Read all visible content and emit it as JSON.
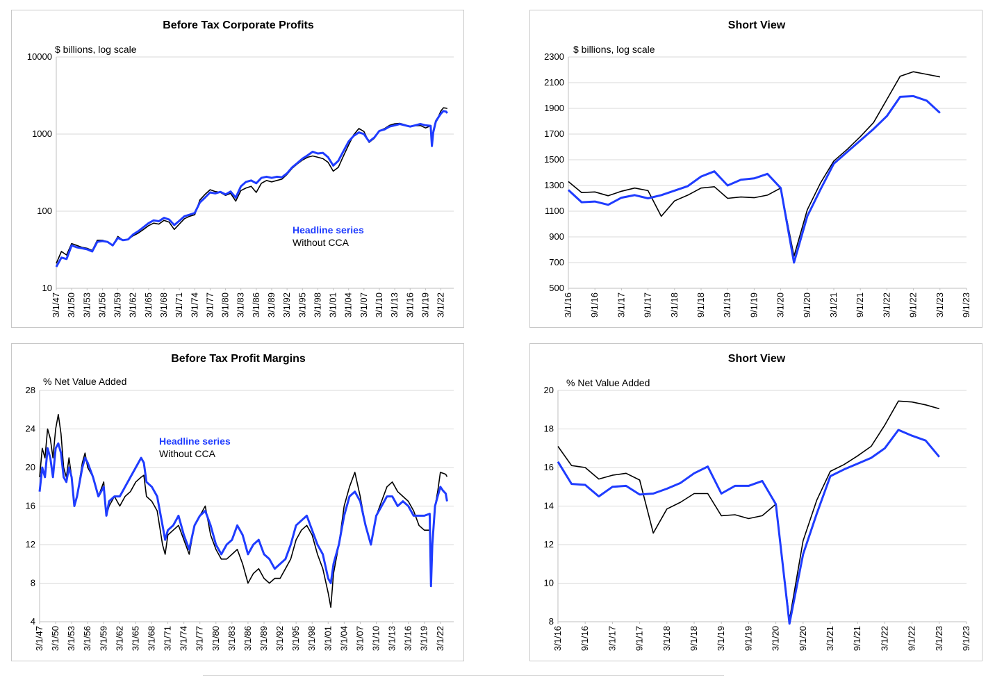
{
  "colors": {
    "headline": "#1f3cff",
    "without_cca": "#000000",
    "grid": "#d9d9d9",
    "axis": "#bfbfbf"
  },
  "chart_data": [
    {
      "type": "line",
      "title": "Before Tax Corporate Profits",
      "ylabel": "$ billions, log scale",
      "y_scale": "log",
      "ylim": [
        10,
        10000
      ],
      "y_ticks": [
        "10",
        "100",
        "1000",
        "10000"
      ],
      "x_tick_labels": [
        "3/1/47",
        "3/1/50",
        "3/1/53",
        "3/1/56",
        "3/1/59",
        "3/1/62",
        "3/1/65",
        "3/1/68",
        "3/1/71",
        "3/1/74",
        "3/1/77",
        "3/1/80",
        "3/1/83",
        "3/1/86",
        "3/1/89",
        "3/1/92",
        "3/1/95",
        "3/1/98",
        "3/1/01",
        "3/1/04",
        "3/1/07",
        "3/1/10",
        "3/1/13",
        "3/1/16",
        "3/1/19",
        "3/1/22"
      ],
      "xlim": [
        1947.0,
        2024.5
      ],
      "legend": {
        "placement": "center",
        "entries": [
          "Headline series",
          "Without CCA"
        ]
      },
      "series": [
        {
          "name": "Headline series",
          "x": [
            1947.0,
            1948,
            1949,
            1950,
            1951,
            1952,
            1953,
            1954,
            1955,
            1956,
            1957,
            1958,
            1959,
            1960,
            1961,
            1962,
            1963,
            1964,
            1965,
            1966,
            1967,
            1968,
            1969,
            1970,
            1971,
            1972,
            1973,
            1974,
            1975,
            1976,
            1977,
            1978,
            1979,
            1980,
            1981,
            1982,
            1983,
            1984,
            1985,
            1986,
            1987,
            1988,
            1989,
            1990,
            1991,
            1992,
            1993,
            1994,
            1995,
            1996,
            1997,
            1998,
            1999,
            2000,
            2001,
            2002,
            2003,
            2004,
            2005,
            2006,
            2007,
            2008,
            2009,
            2010,
            2011,
            2012,
            2013,
            2014,
            2015,
            2016,
            2017,
            2018,
            2019,
            2020.0,
            2020.25,
            2020.5,
            2021,
            2021.5,
            2022,
            2022.5,
            2023,
            2023.25
          ],
          "y": [
            19,
            25,
            24,
            36,
            34,
            33,
            32,
            30,
            40,
            41,
            40,
            36,
            45,
            42,
            43,
            50,
            55,
            62,
            70,
            76,
            74,
            82,
            78,
            66,
            75,
            86,
            90,
            95,
            130,
            150,
            175,
            170,
            178,
            165,
            180,
            150,
            210,
            240,
            250,
            230,
            270,
            280,
            270,
            280,
            275,
            310,
            370,
            420,
            480,
            530,
            590,
            560,
            570,
            500,
            390,
            450,
            600,
            800,
            950,
            1050,
            1000,
            800,
            900,
            1100,
            1150,
            1250,
            1300,
            1350,
            1300,
            1250,
            1300,
            1350,
            1300,
            1280,
            700,
            1050,
            1450,
            1650,
            1840,
            1990,
            1960,
            1870
          ]
        },
        {
          "name": "Without CCA",
          "x": [
            1947.0,
            1948,
            1949,
            1950,
            1951,
            1952,
            1953,
            1954,
            1955,
            1956,
            1957,
            1958,
            1959,
            1960,
            1961,
            1962,
            1963,
            1964,
            1965,
            1966,
            1967,
            1968,
            1969,
            1970,
            1971,
            1972,
            1973,
            1974,
            1975,
            1976,
            1977,
            1978,
            1979,
            1980,
            1981,
            1982,
            1983,
            1984,
            1985,
            1986,
            1987,
            1988,
            1989,
            1990,
            1991,
            1992,
            1993,
            1994,
            1995,
            1996,
            1997,
            1998,
            1999,
            2000,
            2001,
            2002,
            2003,
            2004,
            2005,
            2006,
            2007,
            2008,
            2009,
            2010,
            2011,
            2012,
            2013,
            2014,
            2015,
            2016,
            2017,
            2018,
            2019,
            2020.0,
            2020.25,
            2020.5,
            2021,
            2021.5,
            2022,
            2022.5,
            2023,
            2023.25
          ],
          "y": [
            21,
            30,
            27,
            38,
            36,
            34,
            33,
            31,
            42,
            42,
            40,
            36,
            47,
            42,
            43,
            48,
            52,
            58,
            65,
            70,
            68,
            76,
            72,
            58,
            68,
            80,
            86,
            90,
            140,
            165,
            190,
            180,
            175,
            160,
            170,
            135,
            185,
            200,
            210,
            175,
            230,
            250,
            240,
            250,
            260,
            300,
            360,
            410,
            460,
            500,
            520,
            500,
            480,
            430,
            330,
            370,
            520,
            720,
            980,
            1180,
            1080,
            780,
            880,
            1100,
            1180,
            1300,
            1360,
            1380,
            1320,
            1250,
            1280,
            1290,
            1200,
            1280,
            750,
            1120,
            1500,
            1680,
            1990,
            2190,
            2170,
            2150
          ]
        }
      ]
    },
    {
      "type": "line",
      "title": "Short View",
      "ylabel": "$ billions, log scale",
      "ylim": [
        500,
        2300
      ],
      "y_ticks": [
        "500",
        "700",
        "900",
        "1100",
        "1300",
        "1500",
        "1700",
        "1900",
        "2100",
        "2300"
      ],
      "x_tick_labels": [
        "3/1/16",
        "9/1/16",
        "3/1/17",
        "9/1/17",
        "3/1/18",
        "9/1/18",
        "3/1/19",
        "9/1/19",
        "3/1/20",
        "9/1/20",
        "3/1/21",
        "9/1/21",
        "3/1/22",
        "9/1/22",
        "3/1/23",
        "9/1/23"
      ],
      "x_dates": [
        "3/1/16",
        "6/1/16",
        "9/1/16",
        "12/1/16",
        "3/1/17",
        "6/1/17",
        "9/1/17",
        "12/1/17",
        "3/1/18",
        "6/1/18",
        "9/1/18",
        "12/1/18",
        "3/1/19",
        "6/1/19",
        "9/1/19",
        "12/1/19",
        "3/1/20",
        "6/1/20",
        "9/1/20",
        "12/1/20",
        "3/1/21",
        "6/1/21",
        "9/1/21",
        "12/1/21",
        "3/1/22",
        "6/1/22",
        "9/1/22",
        "12/1/22",
        "3/1/23"
      ],
      "series": [
        {
          "name": "Headline series",
          "y": [
            1265,
            1170,
            1175,
            1150,
            1205,
            1225,
            1200,
            1225,
            1260,
            1295,
            1370,
            1410,
            1300,
            1345,
            1355,
            1390,
            1280,
            700,
            1060,
            1270,
            1470,
            1560,
            1650,
            1740,
            1840,
            1990,
            1995,
            1960,
            1865
          ]
        },
        {
          "name": "Without CCA",
          "y": [
            1330,
            1245,
            1250,
            1220,
            1255,
            1280,
            1260,
            1060,
            1180,
            1225,
            1280,
            1290,
            1200,
            1210,
            1205,
            1225,
            1280,
            750,
            1110,
            1320,
            1490,
            1580,
            1680,
            1790,
            1970,
            2150,
            2185,
            2165,
            2145
          ]
        }
      ]
    },
    {
      "type": "line",
      "title": "Before Tax Profit Margins",
      "ylabel": "% Net Value Added",
      "ylim": [
        4,
        28
      ],
      "y_ticks": [
        "4",
        "8",
        "12",
        "16",
        "20",
        "24",
        "28"
      ],
      "x_tick_labels": [
        "3/1/47",
        "3/1/50",
        "3/1/53",
        "3/1/56",
        "3/1/59",
        "3/1/62",
        "3/1/65",
        "3/1/68",
        "3/1/71",
        "3/1/74",
        "3/1/77",
        "3/1/80",
        "3/1/83",
        "3/1/86",
        "3/1/89",
        "3/1/92",
        "3/1/95",
        "3/1/98",
        "3/1/01",
        "3/1/04",
        "3/1/07",
        "3/1/10",
        "3/1/13",
        "3/1/16",
        "3/1/19",
        "3/1/22"
      ],
      "xlim": [
        1947.0,
        2024.5
      ],
      "legend": {
        "placement": "upper center",
        "entries": [
          "Headline series",
          "Without CCA"
        ]
      },
      "series": [
        {
          "name": "Headline series",
          "x": [
            1947.0,
            1947.5,
            1948,
            1948.5,
            1949,
            1949.5,
            1950,
            1950.5,
            1951,
            1951.5,
            1952,
            1952.5,
            1953,
            1953.5,
            1954,
            1955,
            1955.5,
            1956,
            1957,
            1958,
            1959,
            1959.5,
            1960,
            1961,
            1962,
            1963,
            1964,
            1965,
            1966,
            1966.5,
            1967,
            1968,
            1969,
            1970,
            1970.5,
            1971,
            1972,
            1973,
            1974,
            1975,
            1976,
            1977,
            1978,
            1979,
            1980,
            1981,
            1982,
            1983,
            1984,
            1985,
            1986,
            1987,
            1988,
            1989,
            1990,
            1991,
            1992,
            1993,
            1994,
            1995,
            1996,
            1997,
            1998,
            1999,
            2000,
            2001,
            2001.5,
            2002,
            2003,
            2004,
            2005,
            2006,
            2007,
            2008,
            2009,
            2010,
            2011,
            2012,
            2013,
            2014,
            2015,
            2016,
            2017,
            2018,
            2019,
            2020.0,
            2020.25,
            2020.5,
            2021,
            2021.5,
            2022,
            2022.5,
            2023,
            2023.25
          ],
          "y": [
            17.5,
            20,
            19,
            22,
            21,
            19,
            22,
            22.5,
            21.5,
            19,
            18.5,
            20,
            19,
            16,
            17,
            20,
            21,
            20.5,
            19,
            17,
            18,
            15,
            16.5,
            17,
            17,
            18,
            19,
            20,
            21,
            20.5,
            18.5,
            18,
            17,
            14,
            12.5,
            13.5,
            14,
            15,
            13,
            11.5,
            14,
            15,
            15.5,
            14,
            12,
            11,
            12,
            12.5,
            14,
            13,
            11,
            12,
            12.5,
            11,
            10.5,
            9.5,
            10,
            10.5,
            12,
            14,
            14.5,
            15,
            13.5,
            12,
            11,
            8.5,
            8,
            10,
            12,
            15,
            17,
            17.5,
            16.5,
            14,
            12,
            15,
            16,
            17,
            17,
            16,
            16.5,
            16,
            15,
            15,
            15,
            15.2,
            7.7,
            12,
            16,
            17,
            18,
            17.6,
            17.3,
            16.5
          ]
        },
        {
          "name": "Without CCA",
          "x": [
            1947.0,
            1947.5,
            1948,
            1948.5,
            1949,
            1949.5,
            1950,
            1950.5,
            1951,
            1951.5,
            1952,
            1952.5,
            1953,
            1953.5,
            1954,
            1955,
            1955.5,
            1956,
            1957,
            1958,
            1959,
            1959.5,
            1960,
            1961,
            1962,
            1963,
            1964,
            1965,
            1966,
            1966.5,
            1967,
            1968,
            1969,
            1970,
            1970.5,
            1971,
            1972,
            1973,
            1974,
            1975,
            1976,
            1977,
            1978,
            1979,
            1980,
            1981,
            1982,
            1983,
            1984,
            1985,
            1986,
            1987,
            1988,
            1989,
            1990,
            1991,
            1992,
            1993,
            1994,
            1995,
            1996,
            1997,
            1998,
            1999,
            2000,
            2001,
            2001.5,
            2002,
            2003,
            2004,
            2005,
            2006,
            2007,
            2008,
            2009,
            2010,
            2011,
            2012,
            2013,
            2014,
            2015,
            2016,
            2017,
            2018,
            2019,
            2020.0,
            2020.25,
            2020.5,
            2021,
            2021.5,
            2022,
            2022.5,
            2023,
            2023.25
          ],
          "y": [
            19,
            22,
            21,
            24,
            23,
            21,
            24,
            25.5,
            23.5,
            20,
            19,
            21,
            19,
            16,
            17,
            20.5,
            21.5,
            20,
            19,
            17,
            18.5,
            15,
            16,
            17,
            16,
            17,
            17.5,
            18.5,
            19,
            19.2,
            17,
            16.5,
            15.5,
            12,
            11,
            13,
            13.5,
            14,
            12.5,
            11,
            14,
            15,
            16,
            13,
            11.5,
            10.5,
            10.5,
            11,
            11.5,
            10,
            8,
            9,
            9.5,
            8.5,
            8,
            8.5,
            8.5,
            9.5,
            10.5,
            12.5,
            13.5,
            14,
            13,
            11,
            9.5,
            7,
            5.5,
            9,
            12,
            16,
            18,
            19.5,
            17,
            14,
            12,
            15,
            16.5,
            18,
            18.5,
            17.5,
            17,
            16.5,
            15.5,
            14,
            13.5,
            13.5,
            7.7,
            12.2,
            16,
            17.5,
            19.5,
            19.4,
            19.3,
            19.05
          ]
        }
      ]
    },
    {
      "type": "line",
      "title": "Short View",
      "ylabel": "% Net Value Added",
      "ylim": [
        8,
        20
      ],
      "y_ticks": [
        "8",
        "10",
        "12",
        "14",
        "16",
        "18",
        "20"
      ],
      "x_tick_labels": [
        "3/1/16",
        "9/1/16",
        "3/1/17",
        "9/1/17",
        "3/1/18",
        "9/1/18",
        "3/1/19",
        "9/1/19",
        "3/1/20",
        "9/1/20",
        "3/1/21",
        "9/1/21",
        "3/1/22",
        "9/1/22",
        "3/1/23",
        "9/1/23"
      ],
      "x_dates": [
        "3/1/16",
        "6/1/16",
        "9/1/16",
        "12/1/16",
        "3/1/17",
        "6/1/17",
        "9/1/17",
        "12/1/17",
        "3/1/18",
        "6/1/18",
        "9/1/18",
        "12/1/18",
        "3/1/19",
        "6/1/19",
        "9/1/19",
        "12/1/19",
        "3/1/20",
        "6/1/20",
        "9/1/20",
        "12/1/20",
        "3/1/21",
        "6/1/21",
        "9/1/21",
        "12/1/21",
        "3/1/22",
        "6/1/22",
        "9/1/22",
        "12/1/22",
        "3/1/23"
      ],
      "series": [
        {
          "name": "Headline series",
          "y": [
            16.3,
            15.15,
            15.1,
            14.5,
            15,
            15.05,
            14.6,
            14.65,
            14.9,
            15.2,
            15.7,
            16.05,
            14.65,
            15.05,
            15.05,
            15.3,
            14.1,
            7.9,
            11.5,
            13.6,
            15.55,
            15.9,
            16.2,
            16.5,
            17,
            17.95,
            17.65,
            17.4,
            16.55
          ]
        },
        {
          "name": "Without CCA",
          "y": [
            17.1,
            16.1,
            16,
            15.4,
            15.6,
            15.7,
            15.35,
            12.6,
            13.85,
            14.2,
            14.65,
            14.65,
            13.5,
            13.55,
            13.35,
            13.5,
            14.1,
            8.1,
            12.2,
            14.3,
            15.8,
            16.15,
            16.6,
            17.1,
            18.2,
            19.45,
            19.4,
            19.25,
            19.05
          ]
        }
      ]
    }
  ]
}
